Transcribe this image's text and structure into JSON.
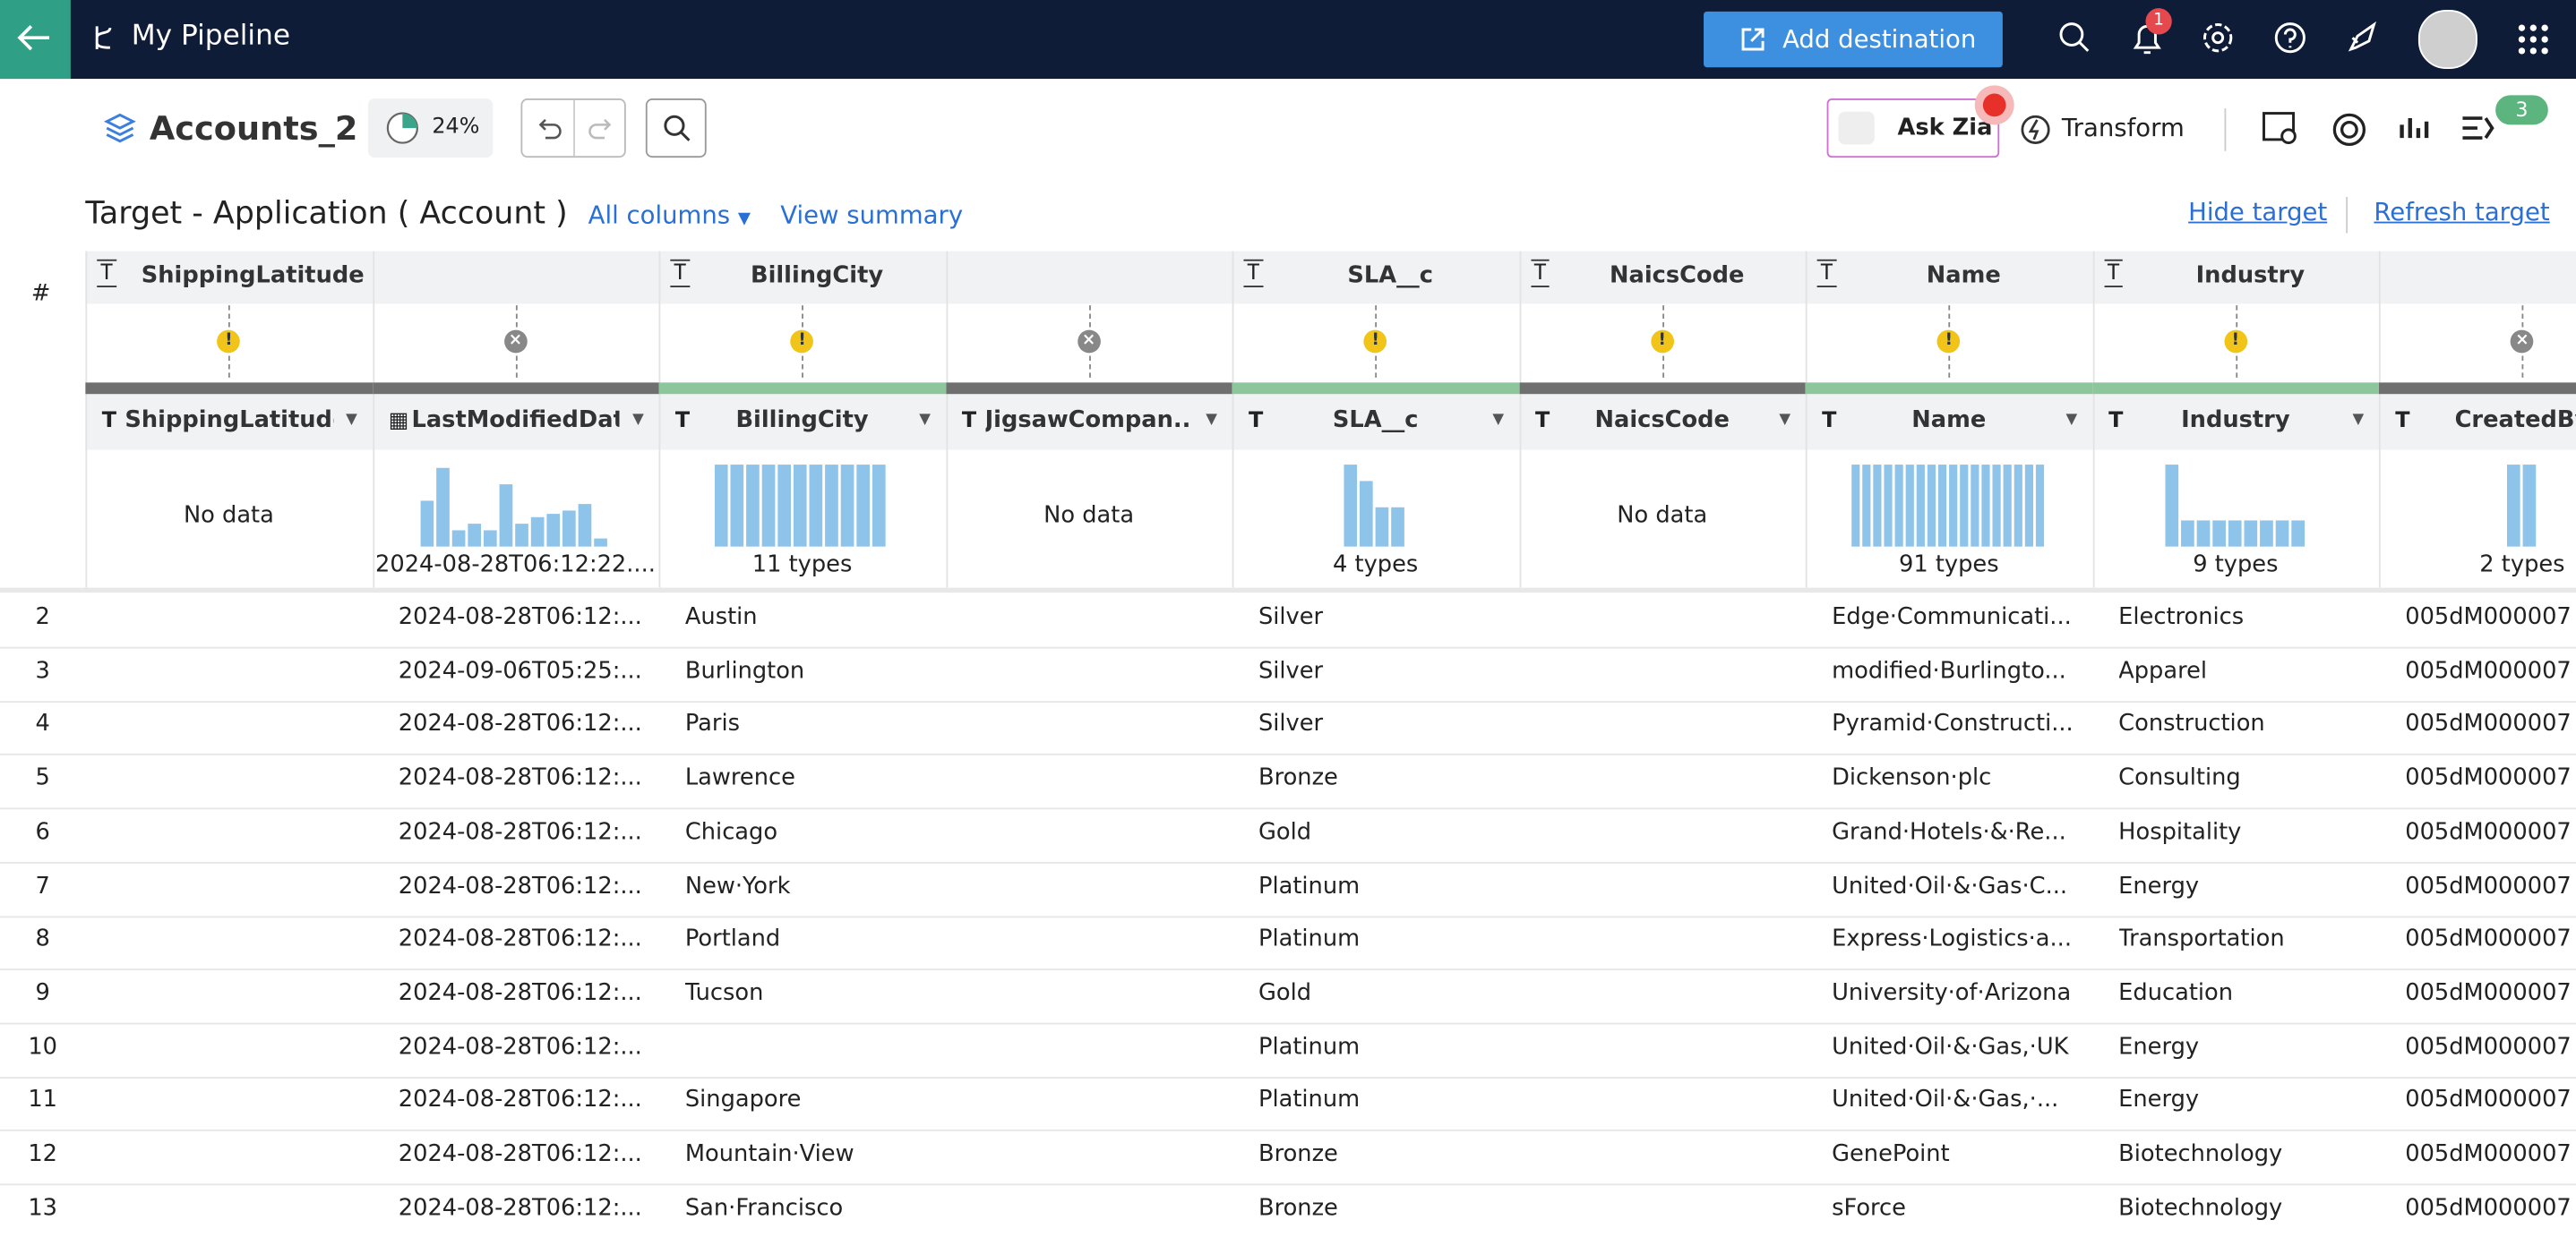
{
  "header": {
    "title": "My Pipeline",
    "add_button": "Add destination",
    "notification_count": "1"
  },
  "toolbar": {
    "dataset": "Accounts_2",
    "progress": "24%",
    "ask": "Ask Zia",
    "transform": "Transform",
    "badge": "3"
  },
  "subheader": {
    "title": "Target - Application ( Account )",
    "columns_filter": "All columns",
    "summary_link": "View summary",
    "hide_link": "Hide target",
    "refresh_link": "Refresh target"
  },
  "table": {
    "row_header": "#",
    "columns": [
      {
        "target": "ShippingLatitude",
        "status": "warn",
        "type": "T",
        "name": "ShippingLatitude",
        "profile": "No data"
      },
      {
        "target": null,
        "status": "missing",
        "type": "date",
        "name": "LastModifiedDate",
        "profile": "2024-08-28T06:12:22....",
        "histogram": [
          28,
          48,
          10,
          14,
          10,
          38,
          14,
          18,
          20,
          22,
          26,
          5
        ]
      },
      {
        "target": "BillingCity",
        "status": "warn",
        "type": "T",
        "name": "BillingCity",
        "profile": "11 types",
        "histogram": [
          50,
          50,
          50,
          50,
          50,
          50,
          50,
          50,
          50,
          50,
          50
        ]
      },
      {
        "target": null,
        "status": "missing",
        "type": "T",
        "name": "JigsawCompan...",
        "profile": "No data"
      },
      {
        "target": "SLA__c",
        "status": "warn",
        "type": "T",
        "name": "SLA__c",
        "profile": "4 types",
        "histogram": [
          50,
          40,
          24,
          24
        ]
      },
      {
        "target": "NaicsCode",
        "status": "warn",
        "type": "T",
        "name": "NaicsCode",
        "profile": "No data"
      },
      {
        "target": "Name",
        "status": "warn",
        "type": "T",
        "name": "Name",
        "profile": "91 types",
        "histogram": [
          50,
          50,
          50,
          50,
          50,
          50,
          50,
          50,
          50,
          50,
          50,
          50,
          50,
          50,
          50,
          50,
          50,
          50
        ]
      },
      {
        "target": "Industry",
        "status": "warn",
        "type": "T",
        "name": "Industry",
        "profile": "9 types",
        "histogram": [
          50,
          16,
          16,
          16,
          16,
          16,
          16,
          16,
          16
        ]
      },
      {
        "target": null,
        "status": "missing",
        "type": "T",
        "name": "CreatedBy",
        "profile": "2 types",
        "histogram": [
          50,
          50
        ]
      }
    ],
    "rows": [
      [
        "2",
        null,
        "2024-08-28T06:12:...",
        "Austin",
        null,
        "Silver",
        null,
        "Edge·Communicati...",
        "Electronics",
        "005dM000007"
      ],
      [
        "3",
        null,
        "2024-09-06T05:25:...",
        "Burlington",
        null,
        "Silver",
        null,
        "modified·Burlingto...",
        "Apparel",
        "005dM000007"
      ],
      [
        "4",
        null,
        "2024-08-28T06:12:...",
        "Paris",
        null,
        "Silver",
        null,
        "Pyramid·Constructi...",
        "Construction",
        "005dM000007"
      ],
      [
        "5",
        null,
        "2024-08-28T06:12:...",
        "Lawrence",
        null,
        "Bronze",
        null,
        "Dickenson·plc",
        "Consulting",
        "005dM000007"
      ],
      [
        "6",
        null,
        "2024-08-28T06:12:...",
        "Chicago",
        null,
        "Gold",
        null,
        "Grand·Hotels·&·Re...",
        "Hospitality",
        "005dM000007"
      ],
      [
        "7",
        null,
        "2024-08-28T06:12:...",
        "New·York",
        null,
        "Platinum",
        null,
        "United·Oil·&·Gas·C...",
        "Energy",
        "005dM000007"
      ],
      [
        "8",
        null,
        "2024-08-28T06:12:...",
        "Portland",
        null,
        "Platinum",
        null,
        "Express·Logistics·a...",
        "Transportation",
        "005dM000007"
      ],
      [
        "9",
        null,
        "2024-08-28T06:12:...",
        "Tucson",
        null,
        "Gold",
        null,
        "University·of·Arizona",
        "Education",
        "005dM000007"
      ],
      [
        "10",
        null,
        "2024-08-28T06:12:...",
        null,
        null,
        "Platinum",
        null,
        "United·Oil·&·Gas,·UK",
        "Energy",
        "005dM000007"
      ],
      [
        "11",
        null,
        "2024-08-28T06:12:...",
        "Singapore",
        null,
        "Platinum",
        null,
        "United·Oil·&·Gas,·...",
        "Energy",
        "005dM000007"
      ],
      [
        "12",
        null,
        "2024-08-28T06:12:...",
        "Mountain·View",
        null,
        "Bronze",
        null,
        "GenePoint",
        "Biotechnology",
        "005dM000007"
      ],
      [
        "13",
        null,
        "2024-08-28T06:12:...",
        "San·Francisco",
        null,
        "Bronze",
        null,
        "sForce",
        "Biotechnology",
        "005dM000007"
      ]
    ]
  }
}
